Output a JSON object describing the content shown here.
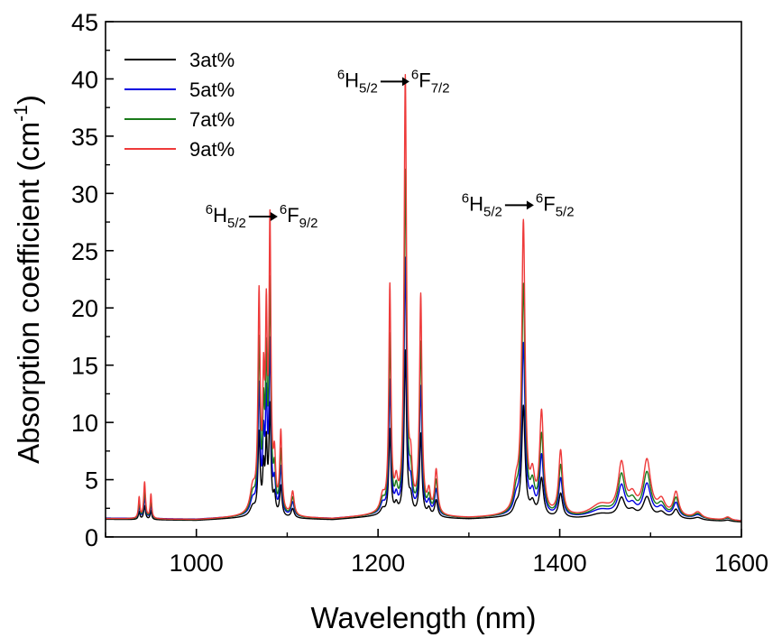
{
  "chart_data": {
    "type": "line",
    "xlabel": "Wavelength (nm)",
    "ylabel_main": "Absorption coefficient (cm",
    "ylabel_sup": "-1",
    "ylabel_close": ")",
    "xlim": [
      900,
      1600
    ],
    "ylim": [
      0,
      45
    ],
    "x_ticks": [
      1000,
      1200,
      1400,
      1600
    ],
    "x_tick_labels": [
      "1000",
      "1200",
      "1400",
      "1600"
    ],
    "y_ticks": [
      0,
      5,
      10,
      15,
      20,
      25,
      30,
      35,
      40,
      45
    ],
    "y_tick_labels": [
      "0",
      "5",
      "10",
      "15",
      "20",
      "25",
      "30",
      "35",
      "40",
      "45"
    ],
    "grid": false,
    "legend_position": "top-left",
    "series": [
      {
        "name": "3at%",
        "color": "#000000",
        "scale": 0.265,
        "offset": -0.06
      },
      {
        "name": "5at%",
        "color": "#0000e0",
        "scale": 0.41,
        "offset": 0.04
      },
      {
        "name": "7at%",
        "color": "#1a7a1a",
        "scale": 0.55,
        "offset": 0.0
      },
      {
        "name": "9at%",
        "color": "#ee3a3a",
        "scale": 0.7,
        "offset": 0.0
      }
    ],
    "baseline": [
      [
        900,
        1.6
      ],
      [
        1000,
        1.5
      ],
      [
        1060,
        1.75
      ],
      [
        1150,
        1.55
      ],
      [
        1200,
        1.85
      ],
      [
        1300,
        1.6
      ],
      [
        1345,
        1.75
      ],
      [
        1420,
        1.6
      ],
      [
        1460,
        1.65
      ],
      [
        1520,
        1.6
      ],
      [
        1600,
        1.35
      ]
    ],
    "peaks": [
      {
        "x": 937,
        "h": 2.6,
        "w": 1.0
      },
      {
        "x": 943,
        "h": 4.5,
        "w": 1.2
      },
      {
        "x": 950,
        "h": 3.0,
        "w": 1.0
      },
      {
        "x": 1062,
        "h": 3.0,
        "w": 3.5
      },
      {
        "x": 1069,
        "h": 26.5,
        "w": 1.4
      },
      {
        "x": 1074,
        "h": 14.0,
        "w": 1.2
      },
      {
        "x": 1077,
        "h": 22.0,
        "w": 1.2
      },
      {
        "x": 1081,
        "h": 35.0,
        "w": 1.3
      },
      {
        "x": 1086,
        "h": 6.0,
        "w": 1.5
      },
      {
        "x": 1093,
        "h": 10.0,
        "w": 1.5
      },
      {
        "x": 1106,
        "h": 3.0,
        "w": 2.0
      },
      {
        "x": 1205,
        "h": 2.0,
        "w": 3.0
      },
      {
        "x": 1213,
        "h": 28.0,
        "w": 1.4
      },
      {
        "x": 1220,
        "h": 3.0,
        "w": 2.0
      },
      {
        "x": 1230,
        "h": 54.0,
        "w": 1.6
      },
      {
        "x": 1236,
        "h": 5.0,
        "w": 2.0
      },
      {
        "x": 1247,
        "h": 27.0,
        "w": 1.6
      },
      {
        "x": 1256,
        "h": 2.5,
        "w": 2.0
      },
      {
        "x": 1264,
        "h": 5.5,
        "w": 2.0
      },
      {
        "x": 1352,
        "h": 3.0,
        "w": 3.5
      },
      {
        "x": 1360,
        "h": 36.0,
        "w": 2.2
      },
      {
        "x": 1370,
        "h": 4.0,
        "w": 3.0
      },
      {
        "x": 1380,
        "h": 12.5,
        "w": 2.6
      },
      {
        "x": 1401,
        "h": 8.0,
        "w": 2.6
      },
      {
        "x": 1445,
        "h": 1.5,
        "w": 14.0
      },
      {
        "x": 1468,
        "h": 6.2,
        "w": 4.5
      },
      {
        "x": 1480,
        "h": 2.0,
        "w": 5.0
      },
      {
        "x": 1496,
        "h": 6.8,
        "w": 5.0
      },
      {
        "x": 1512,
        "h": 1.8,
        "w": 5.0
      },
      {
        "x": 1528,
        "h": 3.0,
        "w": 3.5
      },
      {
        "x": 1552,
        "h": 0.8,
        "w": 5.0
      },
      {
        "x": 1585,
        "h": 0.4,
        "w": 4.0
      }
    ],
    "annotations": [
      {
        "sup1": "6",
        "base1": "H",
        "sub1": "5/2",
        "sup2": "6",
        "base2": "F",
        "sub2": "9/2",
        "x": 1010,
        "y": 27.5
      },
      {
        "sup1": "6",
        "base1": "H",
        "sub1": "5/2",
        "sup2": "6",
        "base2": "F",
        "sub2": "7/2",
        "x": 1155,
        "y": 39.3
      },
      {
        "sup1": "6",
        "base1": "H",
        "sub1": "5/2",
        "sup2": "6",
        "base2": "F",
        "sub2": "5/2",
        "x": 1292,
        "y": 28.5
      }
    ]
  }
}
